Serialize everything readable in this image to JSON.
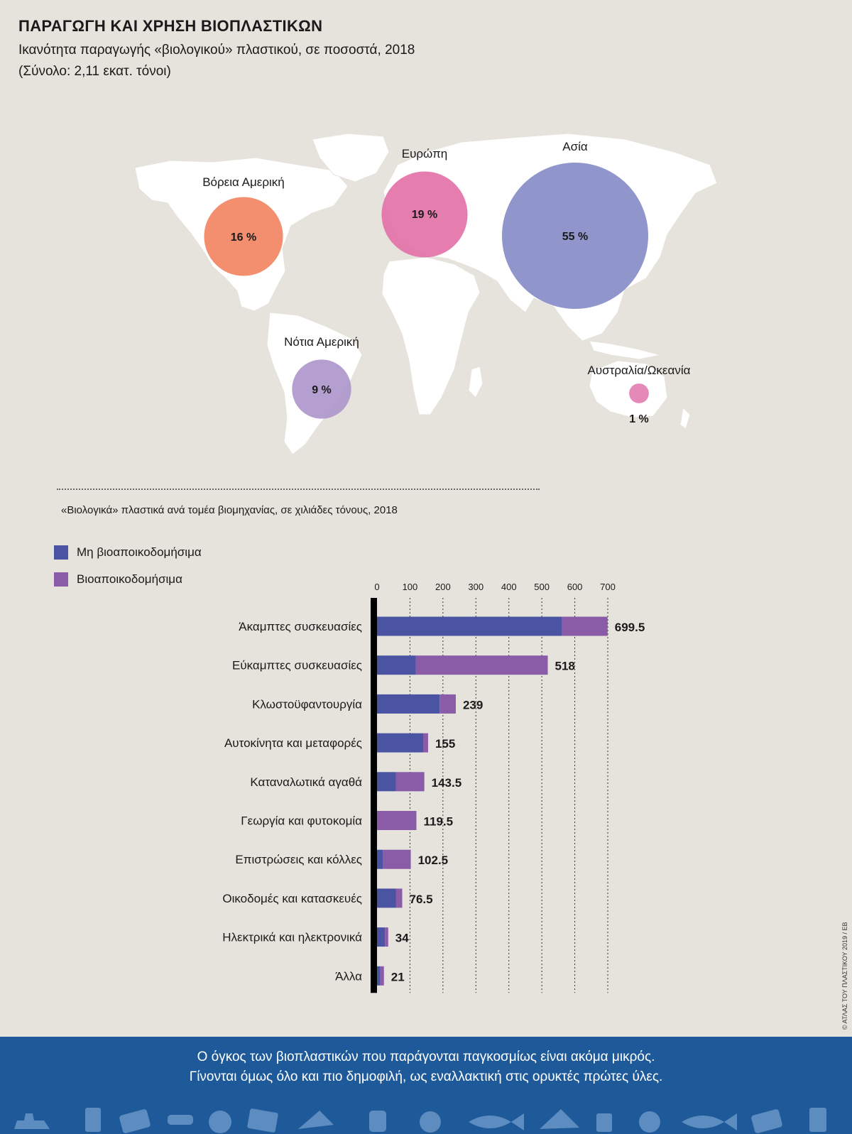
{
  "header": {
    "title": "ΠΑΡΑΓΩΓΗ ΚΑΙ ΧΡΗΣΗ ΒΙΟΠΛΑΣΤΙΚΩΝ",
    "subtitle": "Ικανότητα παραγωγής «βιολογικού» πλαστικού, σε ποσοστά, 2018",
    "total": "(Σύνολο: 2,11 εκατ. τόνοι)"
  },
  "map": {
    "regions": [
      {
        "name": "Βόρεια Αμερική",
        "value": 16,
        "label": "16 %",
        "color": "#f2825e"
      },
      {
        "name": "Ευρώπη",
        "value": 19,
        "label": "19 %",
        "color": "#e270a6"
      },
      {
        "name": "Ασία",
        "value": 55,
        "label": "55 %",
        "color": "#8489c5"
      },
      {
        "name": "Νότια Αμερική",
        "value": 9,
        "label": "9 %",
        "color": "#ad95cb"
      },
      {
        "name": "Αυστραλία/Ωκεανία",
        "value": 1,
        "label": "1 %",
        "color": "#e27cb0"
      }
    ]
  },
  "chart_data": {
    "type": "bar",
    "stacked": true,
    "orientation": "horizontal",
    "title": "«Βιολογικά» πλαστικά ανά τομέα βιομηχανίας, σε χιλιάδες τόνους, 2018",
    "categories": [
      "Άκαμπτες συσκευασίες",
      "Εύκαμπτες συσκευασίες",
      "Κλωστοϋφαντουργία",
      "Αυτοκίνητα και μεταφορές",
      "Καταναλωτικά αγαθά",
      "Γεωργία και φυτοκομία",
      "Επιστρώσεις και κόλλες",
      "Οικοδομές και κατασκευές",
      "Ηλεκτρικά και ηλεκτρονικά",
      "Άλλα"
    ],
    "series": [
      {
        "name": "Μη βιοαποικοδομήσιμα",
        "color": "#4a54a3",
        "values": [
          560,
          118,
          190,
          140,
          57,
          0,
          18,
          58,
          24,
          10
        ]
      },
      {
        "name": "Βιοαποικοδομήσιμα",
        "color": "#8a5ca8",
        "values": [
          139.5,
          400,
          49,
          15,
          86.5,
          119.5,
          84.5,
          18.5,
          10,
          11
        ]
      }
    ],
    "totals": [
      699.5,
      518,
      239,
      155,
      143.5,
      119.5,
      102.5,
      76.5,
      34,
      21
    ],
    "total_labels": [
      "699.5",
      "518",
      "239",
      "155",
      "143.5",
      "119.5",
      "102.5",
      "76.5",
      "34",
      "21"
    ],
    "xticks": [
      0,
      100,
      200,
      300,
      400,
      500,
      600,
      700
    ],
    "xlim": [
      0,
      700
    ],
    "grid": true,
    "legend": "top-left"
  },
  "credit": "© ΑΤΛΑΣ ΤΟΥ ΠΛΑΣΤΙΚΟΥ 2019 / EB",
  "footer": {
    "line1": "Ο όγκος των βιοπλαστικών που παράγονται παγκοσμίως είναι ακόμα μικρός.",
    "line2": "Γίνονται όμως όλο και πιο δημοφιλή, ως εναλλακτική στις ορυκτές πρώτες ύλες."
  }
}
